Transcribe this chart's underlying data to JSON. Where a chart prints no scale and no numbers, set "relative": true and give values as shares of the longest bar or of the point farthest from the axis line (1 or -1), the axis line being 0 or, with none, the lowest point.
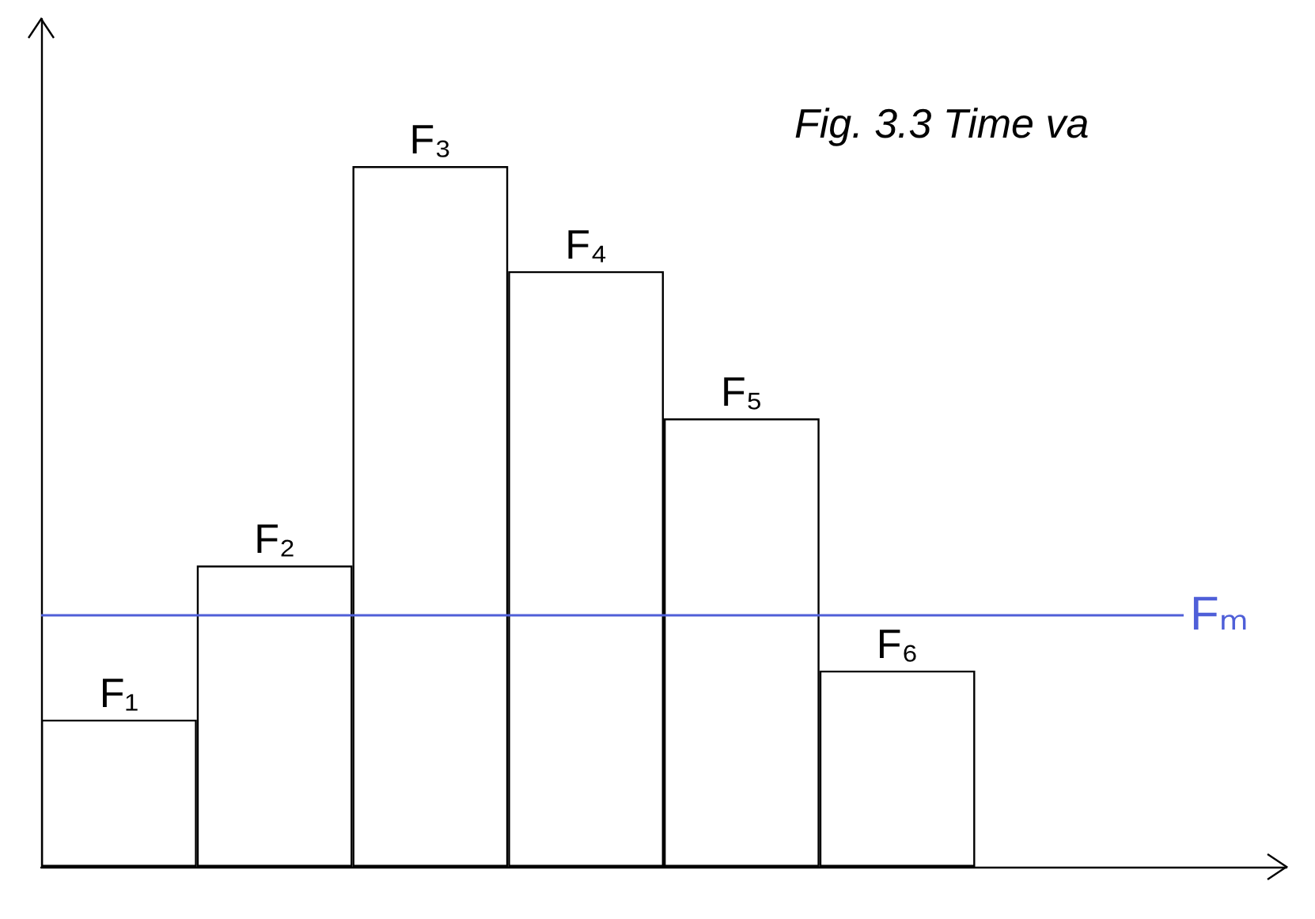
{
  "chart_data": {
    "type": "bar",
    "title": "Fig. 3.3 Time va",
    "categories": [
      "F₁",
      "F₂",
      "F₃",
      "F₄",
      "F₅",
      "F₆"
    ],
    "values": [
      0.21,
      0.43,
      1,
      0.85,
      0.64,
      0.28
    ],
    "color": "#ffffff",
    "relative": true,
    "ref_lines": [
      {
        "axis": "y",
        "value": 0.36,
        "label": "Fₘ",
        "color": "#4f5fd8"
      }
    ],
    "grid": false
  }
}
